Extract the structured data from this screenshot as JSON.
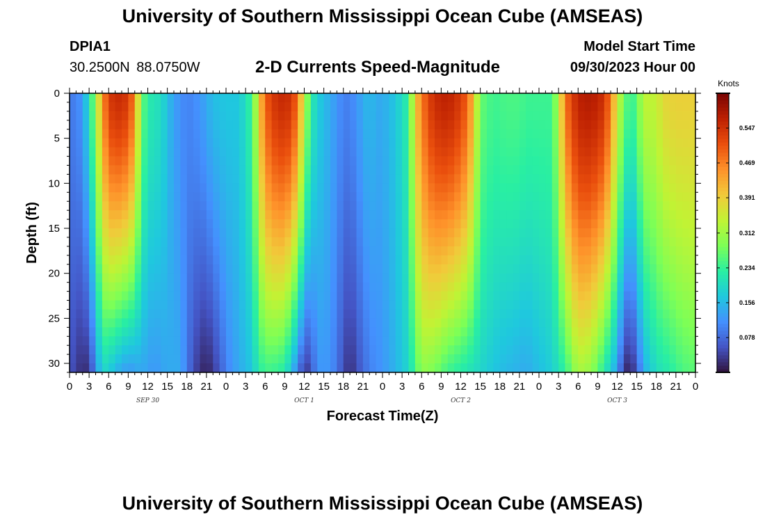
{
  "header": {
    "title": "University of Southern Mississippi Ocean Cube (AMSEAS)",
    "station": "DPIA1",
    "coordinates": "30.2500N  88.0750W",
    "subtitle": "2-D Currents Speed-Magnitude",
    "model_start_label": "Model Start Time",
    "model_start_value": "09/30/2023 Hour 00"
  },
  "footer": {
    "title": "University of Southern Mississippi Ocean Cube (AMSEAS)"
  },
  "chart_data": {
    "type": "heatmap",
    "title": "2-D Currents Speed-Magnitude",
    "xlabel": "Forecast Time(Z)",
    "ylabel": "Depth (ft)",
    "xlim": [
      0,
      96
    ],
    "ylim": [
      0,
      31
    ],
    "x_ticks": [
      0,
      3,
      6,
      9,
      12,
      15,
      18,
      21,
      24,
      27,
      30,
      33,
      36,
      39,
      42,
      45,
      48,
      51,
      54,
      57,
      60,
      63,
      66,
      69,
      72,
      75,
      78,
      81,
      84,
      87,
      90,
      93,
      96
    ],
    "x_tick_labels": [
      "0",
      "3",
      "6",
      "9",
      "12",
      "15",
      "18",
      "21",
      "0",
      "3",
      "6",
      "9",
      "12",
      "15",
      "18",
      "21",
      "0",
      "3",
      "6",
      "9",
      "12",
      "15",
      "18",
      "21",
      "0",
      "3",
      "6",
      "9",
      "12",
      "15",
      "18",
      "21",
      "0"
    ],
    "day_labels": [
      {
        "label": "SEP 30",
        "hour": 12
      },
      {
        "label": "OCT 1",
        "hour": 36
      },
      {
        "label": "OCT 2",
        "hour": 60
      },
      {
        "label": "OCT 3",
        "hour": 84
      }
    ],
    "y_ticks": [
      0,
      5,
      10,
      15,
      20,
      25,
      30
    ],
    "y_tick_labels": [
      "0",
      "5",
      "10",
      "15",
      "20",
      "25",
      "30"
    ],
    "colorbar": {
      "label": "Knots",
      "min": 0,
      "max": 0.625,
      "ticks": [
        0.078,
        0.156,
        0.234,
        0.312,
        0.391,
        0.469,
        0.547
      ],
      "tick_labels": [
        "0.078",
        "0.156",
        "0.234",
        "0.312",
        "0.391",
        "0.469",
        "0.547"
      ],
      "colors": [
        "#30123b",
        "#4454c4",
        "#4490fe",
        "#1fc8de",
        "#29efa2",
        "#7dff56",
        "#c1f334",
        "#f1ca3a",
        "#fe922a",
        "#ea4f0d",
        "#be2102",
        "#7a0403"
      ]
    },
    "surface_speed_knots_by_hour": [
      [
        0,
        0.09
      ],
      [
        2,
        0.12
      ],
      [
        4,
        0.3
      ],
      [
        5,
        0.45
      ],
      [
        6,
        0.53
      ],
      [
        7,
        0.56
      ],
      [
        9,
        0.54
      ],
      [
        10,
        0.46
      ],
      [
        11,
        0.28
      ],
      [
        12,
        0.22
      ],
      [
        14,
        0.2
      ],
      [
        16,
        0.13
      ],
      [
        18,
        0.1
      ],
      [
        20,
        0.12
      ],
      [
        22,
        0.16
      ],
      [
        24,
        0.17
      ],
      [
        26,
        0.17
      ],
      [
        28,
        0.24
      ],
      [
        29,
        0.38
      ],
      [
        30,
        0.5
      ],
      [
        32,
        0.56
      ],
      [
        34,
        0.55
      ],
      [
        35,
        0.48
      ],
      [
        36,
        0.34
      ],
      [
        37,
        0.23
      ],
      [
        38,
        0.18
      ],
      [
        40,
        0.14
      ],
      [
        42,
        0.1
      ],
      [
        43,
        0.1
      ],
      [
        44,
        0.12
      ],
      [
        46,
        0.16
      ],
      [
        47,
        0.14
      ],
      [
        48,
        0.14
      ],
      [
        50,
        0.17
      ],
      [
        52,
        0.23
      ],
      [
        53,
        0.4
      ],
      [
        55,
        0.53
      ],
      [
        57,
        0.57
      ],
      [
        59,
        0.56
      ],
      [
        61,
        0.5
      ],
      [
        62,
        0.4
      ],
      [
        63,
        0.27
      ],
      [
        65,
        0.24
      ],
      [
        67,
        0.25
      ],
      [
        69,
        0.25
      ],
      [
        70,
        0.24
      ],
      [
        72,
        0.24
      ],
      [
        74,
        0.24
      ],
      [
        75,
        0.33
      ],
      [
        76,
        0.48
      ],
      [
        78,
        0.57
      ],
      [
        80,
        0.58
      ],
      [
        82,
        0.55
      ],
      [
        83,
        0.47
      ],
      [
        84,
        0.36
      ],
      [
        85,
        0.28
      ],
      [
        86,
        0.23
      ],
      [
        87,
        0.26
      ],
      [
        88,
        0.34
      ],
      [
        89,
        0.34
      ],
      [
        90,
        0.34
      ],
      [
        91,
        0.38
      ],
      [
        93,
        0.39
      ],
      [
        96,
        0.39
      ]
    ],
    "bottom_speed_knots_by_hour": [
      [
        0,
        0.06
      ],
      [
        2,
        0.02
      ],
      [
        3,
        0.03
      ],
      [
        4,
        0.11
      ],
      [
        5,
        0.19
      ],
      [
        6,
        0.18
      ],
      [
        7,
        0.15
      ],
      [
        9,
        0.12
      ],
      [
        11,
        0.14
      ],
      [
        13,
        0.12
      ],
      [
        15,
        0.14
      ],
      [
        17,
        0.14
      ],
      [
        19,
        0.05
      ],
      [
        21,
        0.01
      ],
      [
        23,
        0.06
      ],
      [
        24,
        0.1
      ],
      [
        26,
        0.14
      ],
      [
        28,
        0.17
      ],
      [
        29,
        0.22
      ],
      [
        30,
        0.24
      ],
      [
        31,
        0.24
      ],
      [
        33,
        0.22
      ],
      [
        34,
        0.16
      ],
      [
        35,
        0.1
      ],
      [
        36,
        0.03
      ],
      [
        37,
        0.05
      ],
      [
        38,
        0.12
      ],
      [
        40,
        0.12
      ],
      [
        43,
        0.02
      ],
      [
        44,
        0.05
      ],
      [
        46,
        0.1
      ],
      [
        48,
        0.12
      ],
      [
        50,
        0.15
      ],
      [
        52,
        0.19
      ],
      [
        54,
        0.3
      ],
      [
        56,
        0.28
      ],
      [
        58,
        0.24
      ],
      [
        60,
        0.22
      ],
      [
        62,
        0.2
      ],
      [
        64,
        0.18
      ],
      [
        66,
        0.16
      ],
      [
        68,
        0.15
      ],
      [
        70,
        0.14
      ],
      [
        72,
        0.16
      ],
      [
        74,
        0.18
      ],
      [
        76,
        0.23
      ],
      [
        78,
        0.32
      ],
      [
        80,
        0.3
      ],
      [
        82,
        0.22
      ],
      [
        84,
        0.13
      ],
      [
        85,
        0.03
      ],
      [
        86,
        0.01
      ],
      [
        87,
        0.06
      ],
      [
        88,
        0.14
      ],
      [
        90,
        0.2
      ],
      [
        92,
        0.22
      ],
      [
        94,
        0.25
      ],
      [
        96,
        0.26
      ]
    ]
  }
}
